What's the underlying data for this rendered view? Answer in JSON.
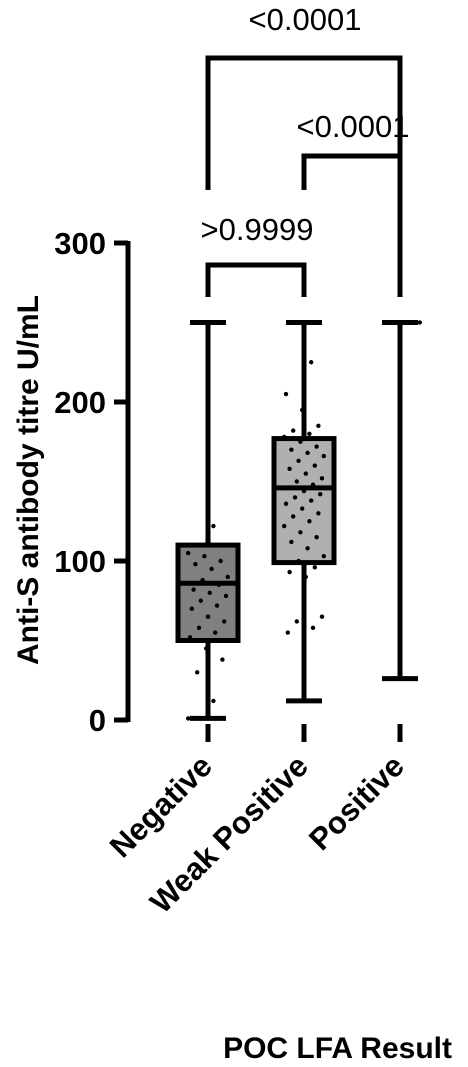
{
  "chart_data": {
    "type": "box",
    "title": "",
    "xlabel": "POC LFA Result",
    "ylabel": "Anti-S antibody titre U/mL",
    "ylim": [
      0,
      300
    ],
    "yticks": [
      0,
      100,
      200,
      300
    ],
    "categories": [
      "Negative",
      "Weak Positive",
      "Positive"
    ],
    "boxes": [
      {
        "category": "Negative",
        "min": 1,
        "q1": 50,
        "median": 86,
        "q3": 110,
        "max": 250,
        "fill": "#808080",
        "points": [
          1,
          12,
          30,
          38,
          45,
          52,
          55,
          58,
          62,
          65,
          70,
          72,
          75,
          78,
          80,
          82,
          85,
          88,
          90,
          95,
          98,
          100,
          103,
          105,
          122
        ]
      },
      {
        "category": "Weak Positive",
        "min": 12,
        "q1": 99,
        "median": 146,
        "q3": 177,
        "max": 250,
        "fill": "#b0b0b0",
        "points": [
          12,
          55,
          58,
          62,
          65,
          90,
          93,
          96,
          100,
          103,
          108,
          112,
          115,
          118,
          122,
          125,
          128,
          130,
          133,
          136,
          138,
          140,
          142,
          144,
          146,
          148,
          150,
          152,
          155,
          158,
          160,
          163,
          166,
          168,
          170,
          172,
          175,
          178,
          180,
          182,
          185,
          195,
          205,
          225,
          250
        ]
      },
      {
        "category": "Positive",
        "min": 26,
        "q1": 250,
        "median": 250,
        "q3": 250,
        "max": 250,
        "fill": "#ffffff",
        "points": [
          250,
          250
        ]
      }
    ],
    "comparisons": [
      {
        "groups": [
          "Negative",
          "Weak Positive"
        ],
        "label": ">0.9999"
      },
      {
        "groups": [
          "Weak Positive",
          "Positive"
        ],
        "label": "<0.0001"
      },
      {
        "groups": [
          "Negative",
          "Positive"
        ],
        "label": "<0.0001"
      }
    ],
    "colors": {
      "axis": "#000000",
      "points": "#000000"
    }
  }
}
